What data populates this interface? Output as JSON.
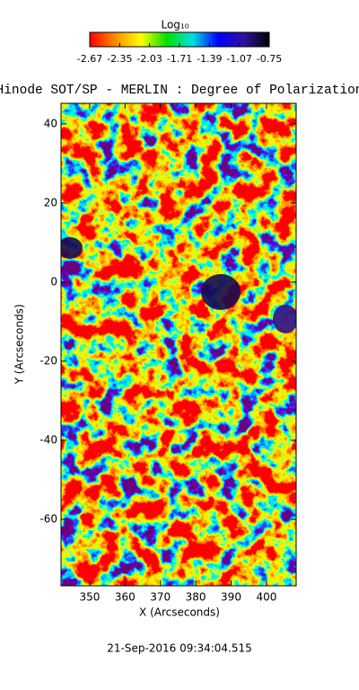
{
  "chart_data": {
    "type": "heatmap",
    "title": "Hinode SOT/SP - MERLIN : Degree of Polarization",
    "xlabel": "X (Arcseconds)",
    "ylabel": "Y (Arcseconds)",
    "xlim": [
      341.9,
      408.4
    ],
    "xticks": [
      350,
      360,
      370,
      380,
      390,
      400
    ],
    "ylim": [
      -76.8,
      45.2
    ],
    "yticks": [
      -60,
      -40,
      -20,
      0,
      20,
      40
    ],
    "colorbar": {
      "label": "Log₁₀",
      "lim": [
        -2.67,
        -0.75
      ],
      "ticks": [
        -2.67,
        -2.35,
        -2.03,
        -1.71,
        -1.39,
        -1.07,
        -0.75
      ],
      "colormap": [
        "#ff0000",
        "#ff8c00",
        "#ffff00",
        "#00e000",
        "#00e0e0",
        "#0000ff",
        "#3010a0",
        "#000000"
      ]
    },
    "timestamp": "21-Sep-2016 09:34:04.515"
  }
}
